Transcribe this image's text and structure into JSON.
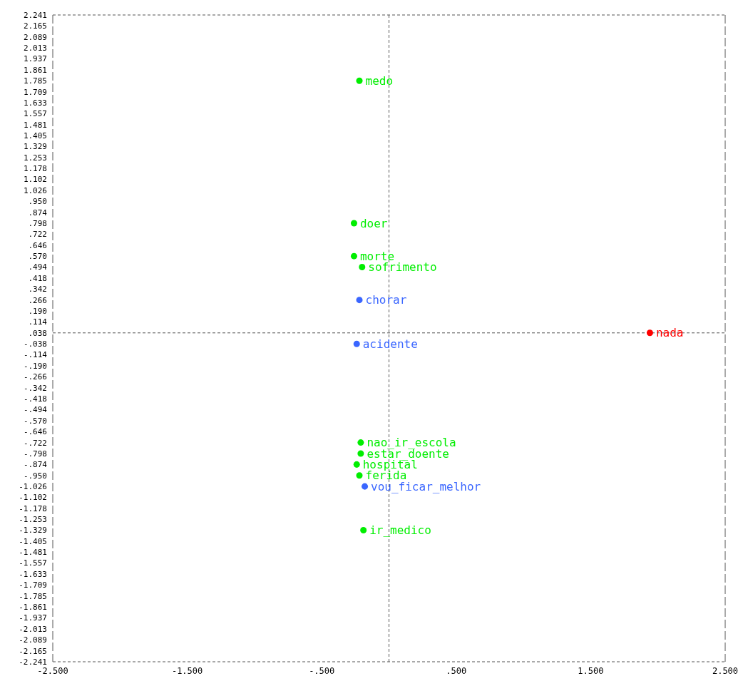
{
  "chart_data": {
    "type": "scatter",
    "marker": "circle",
    "grid": false,
    "xlim": [
      -2.5,
      2.5
    ],
    "ylim": [
      -2.241,
      2.241
    ],
    "xticks": [
      {
        "value": -2.5,
        "label": "-2.500"
      },
      {
        "value": -1.5,
        "label": "-1.500"
      },
      {
        "value": -0.5,
        "label": "-.500"
      },
      {
        "value": 0.5,
        "label": ".500"
      },
      {
        "value": 1.5,
        "label": "1.500"
      },
      {
        "value": 2.5,
        "label": "2.500"
      }
    ],
    "yticks": [
      2.241,
      2.165,
      2.089,
      2.013,
      1.937,
      1.861,
      1.785,
      1.709,
      1.633,
      1.557,
      1.481,
      1.405,
      1.329,
      1.253,
      1.178,
      1.102,
      1.026,
      {
        "value": 0.95,
        "label": ".950"
      },
      {
        "value": 0.874,
        "label": ".874"
      },
      {
        "value": 0.798,
        "label": ".798"
      },
      {
        "value": 0.722,
        "label": ".722"
      },
      {
        "value": 0.646,
        "label": ".646"
      },
      {
        "value": 0.57,
        "label": ".570"
      },
      {
        "value": 0.494,
        "label": ".494"
      },
      {
        "value": 0.418,
        "label": ".418"
      },
      {
        "value": 0.342,
        "label": ".342"
      },
      {
        "value": 0.266,
        "label": ".266"
      },
      {
        "value": 0.19,
        "label": ".190"
      },
      {
        "value": 0.114,
        "label": ".114"
      },
      {
        "value": 0.038,
        "label": ".038"
      },
      {
        "value": -0.038,
        "label": "-.038"
      },
      {
        "value": -0.114,
        "label": "-.114"
      },
      {
        "value": -0.19,
        "label": "-.190"
      },
      {
        "value": -0.266,
        "label": "-.266"
      },
      {
        "value": -0.342,
        "label": "-.342"
      },
      {
        "value": -0.418,
        "label": "-.418"
      },
      {
        "value": -0.494,
        "label": "-.494"
      },
      {
        "value": -0.57,
        "label": "-.570"
      },
      {
        "value": -0.646,
        "label": "-.646"
      },
      {
        "value": -0.722,
        "label": "-.722"
      },
      {
        "value": -0.798,
        "label": "-.798"
      },
      {
        "value": -0.874,
        "label": "-.874"
      },
      {
        "value": -0.95,
        "label": "-.950"
      },
      -1.026,
      -1.102,
      -1.178,
      -1.253,
      -1.329,
      -1.405,
      -1.481,
      -1.557,
      -1.633,
      -1.709,
      -1.785,
      -1.861,
      -1.937,
      -2.013,
      -2.089,
      -2.165,
      -2.241
    ],
    "ref_lines": [
      {
        "axis": "x",
        "value": 0,
        "line_style": "dashed",
        "color": "#555555"
      },
      {
        "axis": "y",
        "value": 0.038,
        "line_style": "dashed",
        "color": "#555555"
      }
    ],
    "series": [
      {
        "color": "#00ee00",
        "x": [
          -0.22,
          -0.26,
          -0.26,
          -0.2,
          -0.21,
          -0.21,
          -0.24,
          -0.22,
          -0.19
        ],
        "values": [
          1.785,
          0.798,
          0.57,
          0.494,
          -0.722,
          -0.798,
          -0.874,
          -0.95,
          -1.329
        ],
        "value_labels": [
          "medo",
          "doer",
          "morte",
          "sofrimento",
          "nao_ir_escola",
          "estar_doente",
          "hospital",
          "ferida",
          "ir_medico"
        ]
      },
      {
        "color": "#3a66ff",
        "x": [
          -0.22,
          -0.24,
          -0.18
        ],
        "values": [
          0.266,
          -0.038,
          -1.026
        ],
        "value_labels": [
          "chorar",
          "acidente",
          "vou_ficar_melhor"
        ]
      },
      {
        "color": "#ff0000",
        "x": [
          1.94
        ],
        "values": [
          0.038
        ],
        "value_labels": [
          "nada"
        ]
      }
    ]
  }
}
